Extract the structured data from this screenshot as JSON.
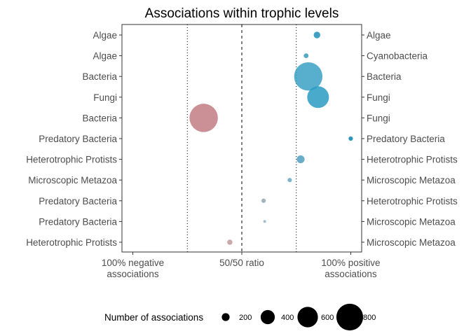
{
  "chart_data": {
    "type": "scatter",
    "title": "Associations within trophic levels",
    "x_ticks": [
      {
        "value": 0,
        "label_lines": [
          "100% negative",
          "associations"
        ]
      },
      {
        "value": 50,
        "label_lines": [
          "50/50 ratio"
        ]
      },
      {
        "value": 100,
        "label_lines": [
          "100% positive",
          "associations"
        ]
      }
    ],
    "xlim": [
      -5,
      105
    ],
    "reference_lines": [
      {
        "x": 25,
        "style": "dotted"
      },
      {
        "x": 50,
        "style": "dashed"
      },
      {
        "x": 75,
        "style": "dotted"
      }
    ],
    "points": [
      {
        "left_label": "Algae",
        "right_label": "Algae",
        "x": 84.5,
        "count": 160,
        "color": "#1e8fb6"
      },
      {
        "left_label": "Algae",
        "right_label": "Cyanobacteria",
        "x": 79.5,
        "count": 100,
        "color": "#3a98bd"
      },
      {
        "left_label": "Bacteria",
        "right_label": "Bacteria",
        "x": 80.5,
        "count": 850,
        "color": "#3aa0c4"
      },
      {
        "left_label": "Fungi",
        "right_label": "Fungi",
        "x": 85.0,
        "count": 640,
        "color": "#2a9bc2"
      },
      {
        "left_label": "Bacteria",
        "right_label": "Fungi",
        "x": 32.5,
        "count": 850,
        "color": "#c17d82"
      },
      {
        "left_label": "Predatory Bacteria",
        "right_label": "Predatory Bacteria",
        "x": 100,
        "count": 90,
        "color": "#0b84b2"
      },
      {
        "left_label": "Heterotrophic Protists",
        "right_label": "Heterotrophic Protists",
        "x": 77.0,
        "count": 200,
        "color": "#4f9fc0"
      },
      {
        "left_label": "Microscopic Metazoa",
        "right_label": "Microscopic Metazoa",
        "x": 72.0,
        "count": 90,
        "color": "#6aa8c6"
      },
      {
        "left_label": "Predatory Bacteria",
        "right_label": "Heterotrophic Protists",
        "x": 60.0,
        "count": 90,
        "color": "#91a7b3"
      },
      {
        "left_label": "Predatory Bacteria",
        "right_label": "Microscopic Metazoa",
        "x": 60.5,
        "count": 40,
        "color": "#8fb3c2"
      },
      {
        "left_label": "Heterotrophic Protists",
        "right_label": "Microscopic Metazoa",
        "x": 44.5,
        "count": 120,
        "color": "#c2999c"
      }
    ],
    "size_legend": {
      "title": "Number of associations",
      "position": "bottom",
      "values": [
        200,
        400,
        600,
        800
      ],
      "labels": [
        "200",
        "400",
        "600",
        "800"
      ]
    },
    "grid": false
  }
}
